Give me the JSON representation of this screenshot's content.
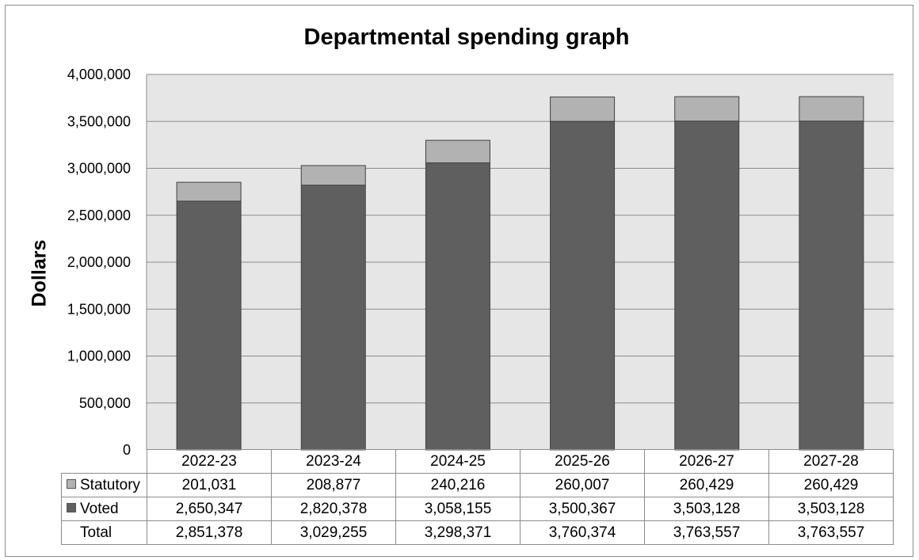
{
  "chart_data": {
    "type": "bar",
    "stacked": true,
    "title": "Departmental spending graph",
    "xlabel": "",
    "ylabel": "Dollars",
    "ylim": [
      0,
      4000000
    ],
    "ytick_values": [
      0,
      500000,
      1000000,
      1500000,
      2000000,
      2500000,
      3000000,
      3500000,
      4000000
    ],
    "ytick_labels": [
      "0",
      "500,000",
      "1,000,000",
      "1,500,000",
      "2,000,000",
      "2,500,000",
      "3,000,000",
      "3,500,000",
      "4,000,000"
    ],
    "grid": true,
    "legend_placement": "data table below chart",
    "categories": [
      "2022-23",
      "2023-24",
      "2024-25",
      "2025-26",
      "2026-27",
      "2027-28"
    ],
    "series": [
      {
        "name": "Statutory",
        "color": "#b2b2b2",
        "values": [
          201031,
          208877,
          240216,
          260007,
          260429,
          260429
        ],
        "labels": [
          "201,031",
          "208,877",
          "240,216",
          "260,007",
          "260,429",
          "260,429"
        ]
      },
      {
        "name": "Voted",
        "color": "#5f5f5f",
        "values": [
          2650347,
          2820378,
          3058155,
          3500367,
          3503128,
          3503128
        ],
        "labels": [
          "2,650,347",
          "2,820,378",
          "3,058,155",
          "3,500,367",
          "3,503,128",
          "3,503,128"
        ]
      }
    ],
    "total": {
      "name": "Total",
      "values": [
        2851378,
        3029255,
        3298371,
        3760374,
        3763557,
        3763557
      ],
      "labels": [
        "2,851,378",
        "3,029,255",
        "3,298,371",
        "3,760,374",
        "3,763,557",
        "3,763,557"
      ]
    },
    "plot_background": "#e6e6e6",
    "gridline_color": "#8c8c8c"
  }
}
